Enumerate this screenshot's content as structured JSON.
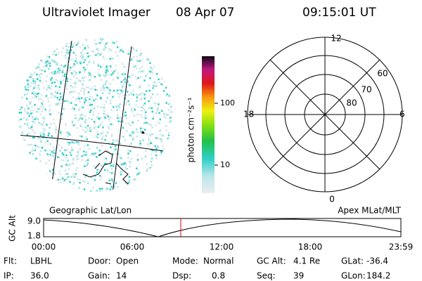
{
  "header": {
    "instrument": "Ultraviolet Imager",
    "date": "08 Apr 07",
    "time": "09:15:01 UT"
  },
  "colorbar": {
    "unit_label": "photon cm⁻²s⁻¹",
    "tick_labels": [
      "100",
      "10"
    ]
  },
  "polar": {
    "mlt_labels": [
      "12",
      "18",
      "6",
      "0"
    ],
    "lat_labels": [
      "60",
      "70",
      "80"
    ]
  },
  "timeline": {
    "left_title": "Geographic Lat/Lon",
    "right_title": "Apex MLat/MLT",
    "y_label": "GC Alt",
    "y_tick_labels": [
      "9.0",
      "1.8"
    ],
    "x_tick_labels": [
      "00:00",
      "06:00",
      "12:00",
      "18:00",
      "23:59"
    ]
  },
  "info": {
    "rows": [
      [
        {
          "label": "Flt:",
          "value": "LBHL"
        },
        {
          "label": "Door:",
          "value": "Open"
        },
        {
          "label": "Mode:",
          "value": "Normal"
        },
        {
          "label": "GC Alt:",
          "value": "4.1 Re"
        },
        {
          "label": "GLat:",
          "value": "-36.4"
        }
      ],
      [
        {
          "label": "IP:",
          "value": "36.0"
        },
        {
          "label": "Gain:",
          "value": "14"
        },
        {
          "label": "Dsp:",
          "value": "0.8"
        },
        {
          "label": "Seq:",
          "value": "39"
        },
        {
          "label": "GLon:",
          "value": "184.2"
        }
      ]
    ]
  }
}
